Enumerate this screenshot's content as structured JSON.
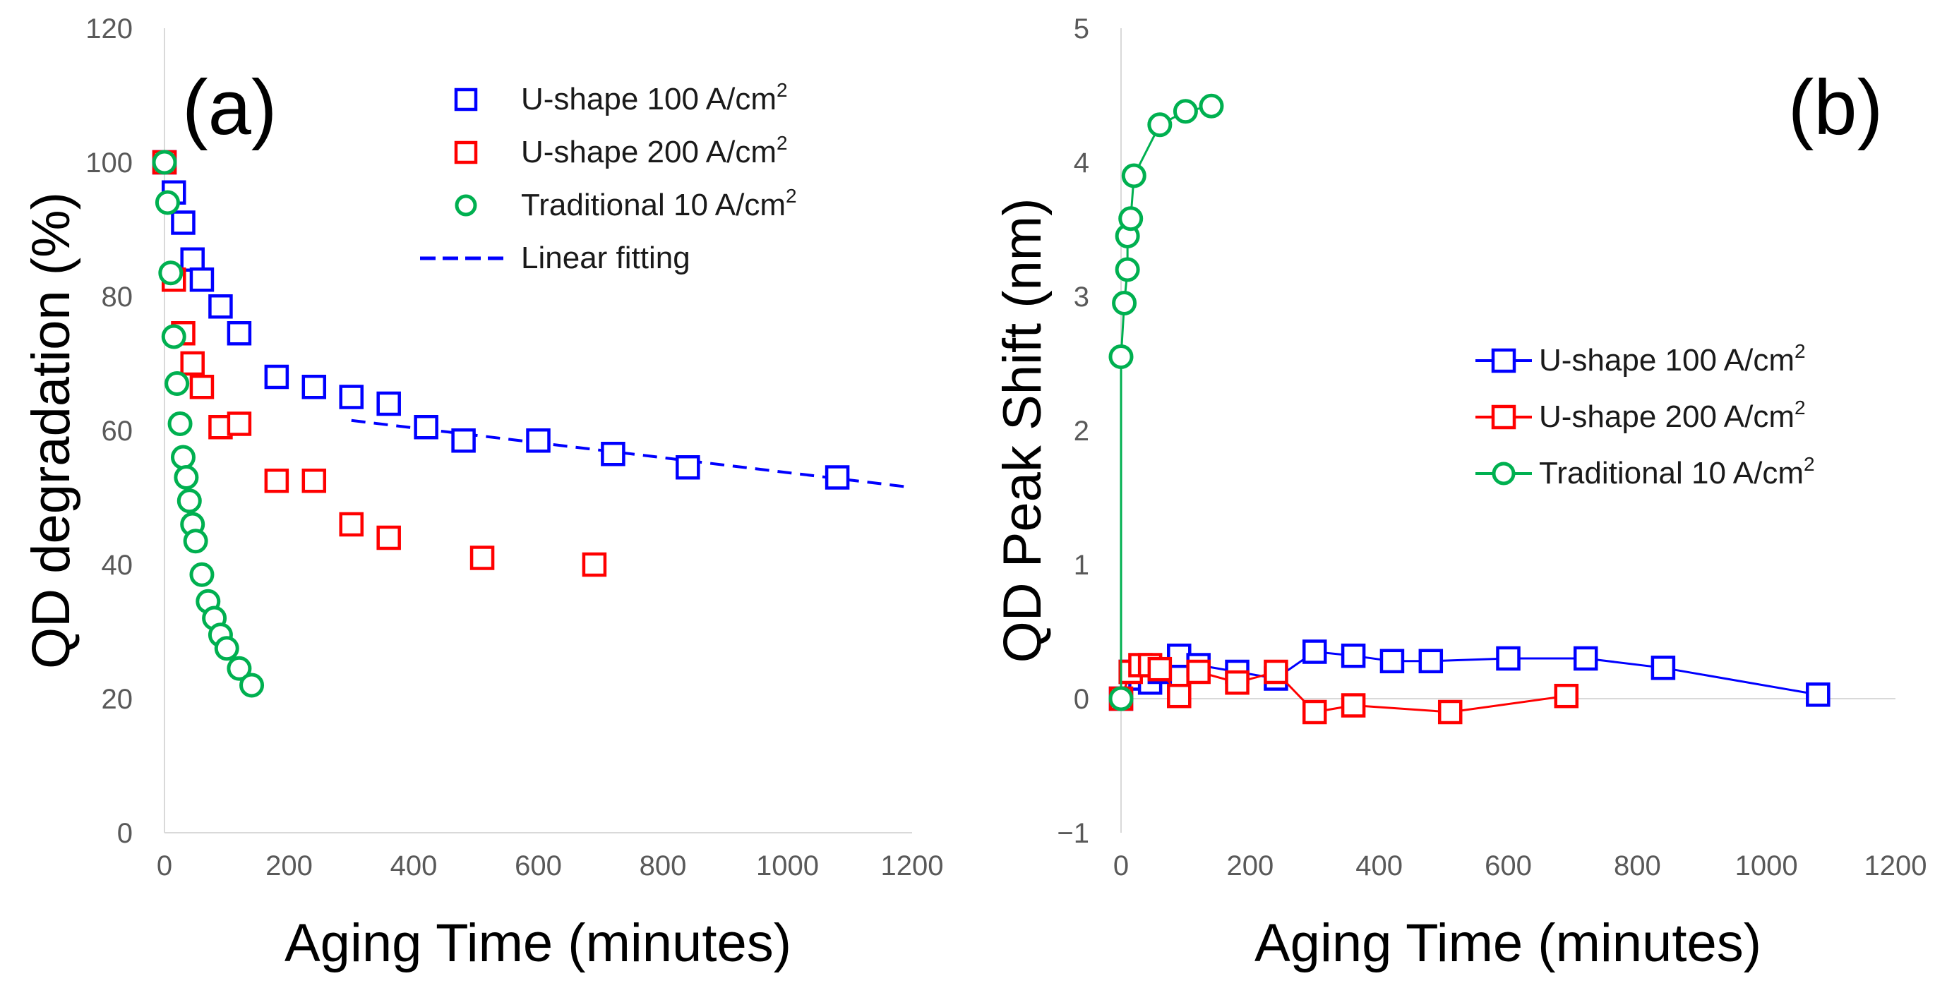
{
  "chart_data": [
    {
      "panel": "(a)",
      "type": "scatter",
      "xlabel": "Aging Time (minutes)",
      "ylabel": "QD degradation (%)",
      "xlim": [
        0,
        1200
      ],
      "ylim": [
        0,
        120
      ],
      "xticks": [
        "0",
        "200",
        "400",
        "600",
        "800",
        "1000",
        "1200"
      ],
      "yticks": [
        "0",
        "20",
        "40",
        "60",
        "80",
        "100",
        "120"
      ],
      "legend_position": "top-right",
      "series": [
        {
          "name": "U-shape 100 A/cm",
          "sup": "2",
          "marker": "square",
          "color": "#0000ff",
          "x": [
            0,
            15,
            30,
            45,
            60,
            90,
            120,
            180,
            240,
            300,
            360,
            420,
            480,
            600,
            720,
            840,
            1080
          ],
          "y": [
            100,
            95.5,
            91,
            85.5,
            82.5,
            78.5,
            74.5,
            68,
            66.5,
            65,
            64,
            60.5,
            58.5,
            58.5,
            56.5,
            54.5,
            53
          ]
        },
        {
          "name": "U-shape 200 A/cm",
          "sup": "2",
          "marker": "square",
          "color": "#ff0000",
          "x": [
            0,
            15,
            30,
            45,
            60,
            90,
            120,
            180,
            240,
            300,
            360,
            510,
            690
          ],
          "y": [
            100,
            82.5,
            74.5,
            70,
            66.5,
            60.5,
            61,
            52.5,
            52.5,
            46,
            44,
            41,
            40
          ]
        },
        {
          "name": "Traditional 10 A/cm",
          "sup": "2",
          "marker": "circle",
          "color": "#00b050",
          "x": [
            0,
            5,
            10,
            15,
            20,
            25,
            30,
            35,
            40,
            45,
            50,
            60,
            70,
            80,
            90,
            100,
            120,
            140
          ],
          "y": [
            100,
            94,
            83.5,
            74,
            67,
            61,
            56,
            53,
            49.5,
            46,
            43.5,
            38.5,
            34.5,
            32,
            29.5,
            27.5,
            24.5,
            22
          ]
        }
      ],
      "fit": {
        "name": "Linear fitting",
        "color": "#0000ff",
        "style": "dashed",
        "x": [
          300,
          1200
        ],
        "y": [
          61.5,
          51.5
        ]
      }
    },
    {
      "panel": "(b)",
      "type": "line",
      "xlabel": "Aging Time (minutes)",
      "ylabel": "QD Peak Shift (nm)",
      "xlim": [
        0,
        1200
      ],
      "ylim": [
        -1,
        5
      ],
      "xticks": [
        "0",
        "200",
        "400",
        "600",
        "800",
        "1000",
        "1200"
      ],
      "yticks": [
        "−1",
        "0",
        "1",
        "2",
        "3",
        "4",
        "5"
      ],
      "legend_position": "middle-right",
      "series": [
        {
          "name": "U-shape 100 A/cm",
          "sup": "2",
          "marker": "square",
          "color": "#0000ff",
          "x": [
            0,
            15,
            30,
            45,
            60,
            90,
            120,
            180,
            240,
            300,
            360,
            420,
            480,
            600,
            720,
            840,
            1080
          ],
          "y": [
            0,
            0.2,
            0.15,
            0.12,
            0.2,
            0.32,
            0.25,
            0.2,
            0.15,
            0.35,
            0.32,
            0.28,
            0.28,
            0.3,
            0.3,
            0.23,
            0.03
          ]
        },
        {
          "name": "U-shape 200 A/cm",
          "sup": "2",
          "marker": "square",
          "color": "#ff0000",
          "x": [
            0,
            15,
            30,
            45,
            60,
            90,
            120,
            180,
            240,
            300,
            360,
            510,
            690
          ],
          "y": [
            0,
            0.2,
            0.25,
            0.25,
            0.22,
            0.02,
            0.2,
            0.12,
            0.2,
            -0.1,
            -0.05,
            -0.1,
            0.02
          ]
        },
        {
          "name": "Traditional 10 A/cm",
          "sup": "2",
          "marker": "circle",
          "color": "#00b050",
          "x": [
            0,
            0,
            5,
            10,
            10,
            15,
            20,
            60,
            100,
            140
          ],
          "y": [
            0,
            2.55,
            2.95,
            3.2,
            3.45,
            3.58,
            3.9,
            4.28,
            4.38,
            4.42
          ]
        }
      ]
    }
  ]
}
